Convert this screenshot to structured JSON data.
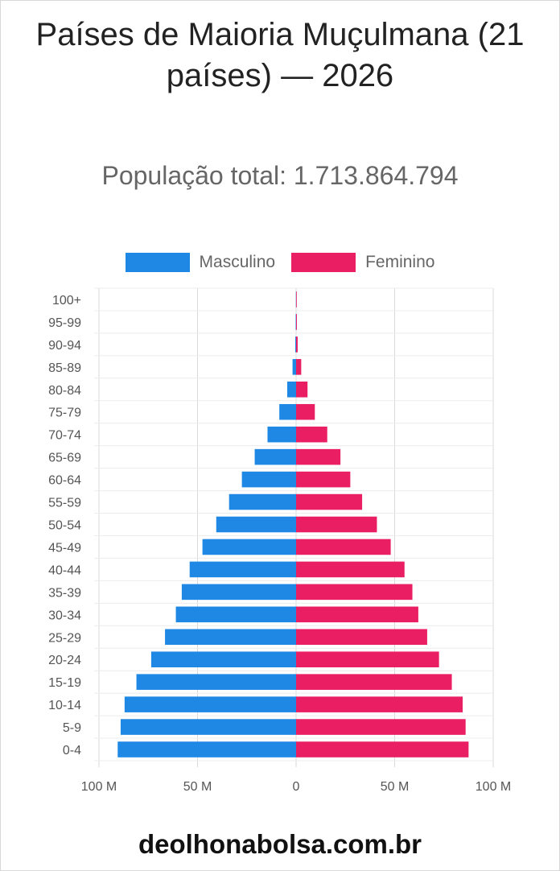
{
  "title": "Países de Maioria Muçulmana (21 países) — 2026",
  "subtitle": "População total: 1.713.864.794",
  "footer": "deolhonabolsa.com.br",
  "colors": {
    "male": "#1f88e5",
    "female": "#e91e63",
    "grid": "#d9d9d9",
    "text": "#555555"
  },
  "chart_data": {
    "type": "bar",
    "orientation": "horizontal-population-pyramid",
    "legend": [
      "Masculino",
      "Feminino"
    ],
    "legend_position": "top",
    "grid": true,
    "categories": [
      "100+",
      "95-99",
      "90-94",
      "85-89",
      "80-84",
      "75-79",
      "70-74",
      "65-69",
      "60-64",
      "55-59",
      "50-54",
      "45-49",
      "40-44",
      "35-39",
      "30-34",
      "25-29",
      "20-24",
      "15-19",
      "10-14",
      "5-9",
      "0-4"
    ],
    "series": [
      {
        "name": "Masculino",
        "values": [
          0.1,
          0.2,
          0.4,
          1.8,
          4.5,
          8.5,
          14.5,
          21,
          27.5,
          34,
          40.5,
          47.5,
          54,
          58,
          61,
          66.5,
          73.5,
          81,
          87,
          89,
          90.5
        ]
      },
      {
        "name": "Feminino",
        "values": [
          0.2,
          0.4,
          0.8,
          2.6,
          5.8,
          9.5,
          15.8,
          22.5,
          27.5,
          33.5,
          41,
          48,
          55,
          59,
          62,
          66.5,
          72.5,
          79,
          84.5,
          86,
          87.5
        ]
      }
    ],
    "xlim": [
      -100,
      100
    ],
    "xticks": [
      "100 M",
      "50 M",
      "0",
      "50 M",
      "100 M"
    ],
    "xlabel": "",
    "ylabel": ""
  }
}
